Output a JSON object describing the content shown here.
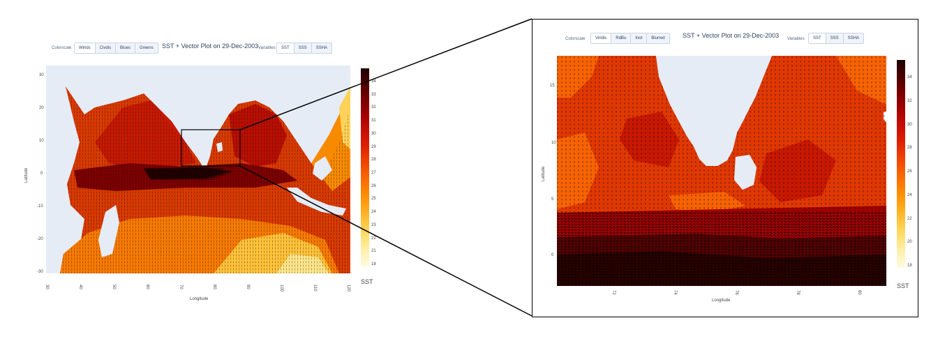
{
  "left": {
    "title": "SST + Vector Plot on 29-Dec-2003",
    "colorscale_label": "Colorscale",
    "colorscale_buttons": [
      "Wirids",
      "Civdis",
      "Blues",
      "Greens"
    ],
    "variables_label": "Variables",
    "variable_buttons": [
      "SST",
      "SSS",
      "SSHA"
    ],
    "xlabel": "Longitude",
    "ylabel": "Latitude",
    "xticks": [
      "30",
      "40",
      "50",
      "60",
      "70",
      "80",
      "90",
      "100",
      "110",
      "120"
    ],
    "yticks": [
      "30",
      "20",
      "10",
      "0",
      "-10",
      "-20",
      "-30"
    ],
    "colorbar_title": "SST",
    "colorbar_ticks": [
      "34",
      "33",
      "32",
      "31",
      "30",
      "29",
      "28",
      "27",
      "26",
      "25",
      "24",
      "23",
      "22",
      "21",
      "18"
    ]
  },
  "right": {
    "title": "SST + Vector Plot on 29-Dec-2003",
    "colorscale_label": "Colorscale",
    "colorscale_buttons": [
      "Viridis",
      "RdBu",
      "Inot",
      "Blurred"
    ],
    "variables_label": "Variables",
    "variable_buttons": [
      "SST",
      "SSS",
      "SSHA"
    ],
    "xlabel": "Longitude",
    "ylabel": "Latitude",
    "xticks": [
      "72",
      "74",
      "76",
      "78",
      "80"
    ],
    "yticks": [
      "15",
      "10",
      "5",
      "0"
    ],
    "colorbar_title": "SST",
    "colorbar_ticks": [
      "34",
      "32",
      "30",
      "28",
      "26",
      "24",
      "22",
      "20",
      "18"
    ]
  },
  "colors": {
    "colorbar": [
      "#fffbe0",
      "#fff0b0",
      "#ffdf70",
      "#ffc23a",
      "#ffa313",
      "#fd8300",
      "#f86000",
      "#ee3e00",
      "#dc1d00",
      "#c40d00",
      "#a10000",
      "#780000",
      "#4a0000",
      "#1e0000"
    ],
    "land": "#e5ecf6"
  },
  "chart_data": [
    {
      "type": "heatmap",
      "title": "SST + Vector Plot on 29-Dec-2003",
      "xlabel": "Longitude",
      "ylabel": "Latitude",
      "xlim": [
        30,
        120
      ],
      "ylim": [
        -30,
        30
      ],
      "zlim": [
        18,
        35
      ],
      "colorbar_title": "SST",
      "overlay": "vector",
      "regions": [
        {
          "lon": [
            45,
            75
          ],
          "lat": [
            5,
            25
          ],
          "sst": 28
        },
        {
          "lon": [
            60,
            95
          ],
          "lat": [
            -5,
            5
          ],
          "sst": 31
        },
        {
          "lon": [
            35,
            100
          ],
          "lat": [
            -15,
            -5
          ],
          "sst": 29
        },
        {
          "lon": [
            40,
            110
          ],
          "lat": [
            -30,
            -15
          ],
          "sst": 24
        }
      ]
    },
    {
      "type": "heatmap",
      "title": "SST + Vector Plot on 29-Dec-2003",
      "xlabel": "Longitude",
      "ylabel": "Latitude",
      "xlim": [
        71,
        81
      ],
      "ylim": [
        -2,
        17
      ],
      "zlim": [
        18,
        35
      ],
      "colorbar_title": "SST",
      "overlay": "vector",
      "regions": [
        {
          "lon": [
            71,
            81
          ],
          "lat": [
            5,
            17
          ],
          "sst": 29.5
        },
        {
          "lon": [
            71,
            81
          ],
          "lat": [
            -2,
            3
          ],
          "sst": 31.5
        }
      ]
    }
  ]
}
